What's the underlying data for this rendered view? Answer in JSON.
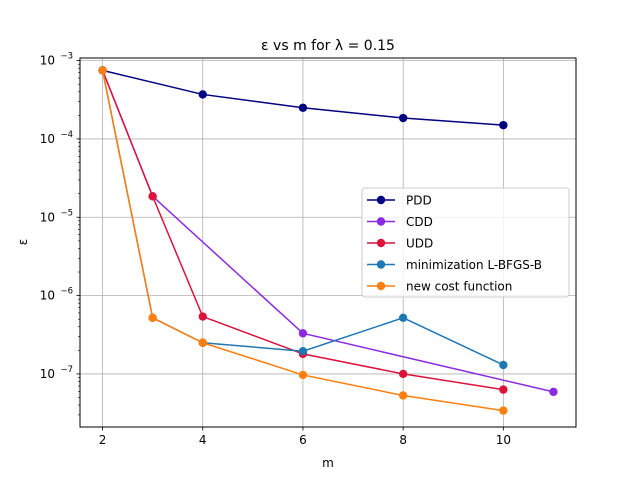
{
  "chart_data": {
    "type": "line",
    "title": "ε vs m for λ = 0.15",
    "xlabel": "m",
    "ylabel": "ε",
    "xlim": [
      1.55,
      11.45
    ],
    "ylim": [
      2.1e-08,
      0.00108
    ],
    "yscale": "log",
    "grid": true,
    "legend_position": "center-right",
    "x_ticks": [
      2,
      4,
      6,
      8,
      10
    ],
    "x_tick_labels": [
      "2",
      "4",
      "6",
      "8",
      "10"
    ],
    "y_ticks": [
      1e-07,
      1e-06,
      1e-05,
      0.0001,
      0.001
    ],
    "y_tick_labels": [
      {
        "base": "10",
        "exp": "−7"
      },
      {
        "base": "10",
        "exp": "−6"
      },
      {
        "base": "10",
        "exp": "−5"
      },
      {
        "base": "10",
        "exp": "−4"
      },
      {
        "base": "10",
        "exp": "−3"
      }
    ],
    "series": [
      {
        "name": "PDD",
        "color": "#000080",
        "x": [
          2,
          4,
          6,
          8,
          10
        ],
        "y": [
          0.00075,
          0.00037,
          0.00025,
          0.000185,
          0.00015
        ]
      },
      {
        "name": "CDD",
        "color": "#8a2be2",
        "x": [
          2,
          3,
          6,
          11
        ],
        "y": [
          0.00075,
          1.85e-05,
          3.3e-07,
          5.9e-08
        ]
      },
      {
        "name": "UDD",
        "color": "#dc143c",
        "x": [
          2,
          3,
          4,
          6,
          8,
          10
        ],
        "y": [
          0.00075,
          1.85e-05,
          5.4e-07,
          1.8e-07,
          1e-07,
          6.3e-08
        ]
      },
      {
        "name": "minimization L-BFGS-B",
        "color": "#1f77b4",
        "x": [
          2,
          3,
          4,
          6,
          8,
          10
        ],
        "y": [
          0.00075,
          5.2e-07,
          2.5e-07,
          1.95e-07,
          5.2e-07,
          1.3e-07
        ]
      },
      {
        "name": "new cost function",
        "color": "#ff7f0e",
        "x": [
          2,
          3,
          4,
          6,
          8,
          10
        ],
        "y": [
          0.00075,
          5.2e-07,
          2.5e-07,
          9.7e-08,
          5.3e-08,
          3.4e-08
        ]
      }
    ]
  }
}
